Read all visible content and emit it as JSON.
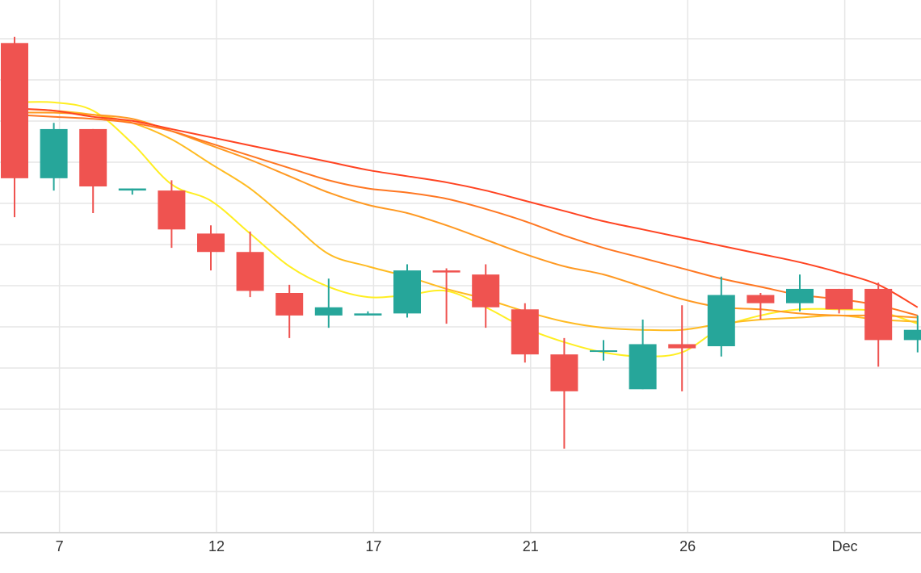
{
  "chart_data": {
    "type": "candlestick",
    "title": "",
    "xlabel": "",
    "ylabel": "",
    "grid": true,
    "legend": "none",
    "x_ticks": [
      {
        "label": "7",
        "index": 1
      },
      {
        "label": "12",
        "index": 5
      },
      {
        "label": "17",
        "index": 9
      },
      {
        "label": "21",
        "index": 13
      },
      {
        "label": "26",
        "index": 17
      },
      {
        "label": "Dec",
        "index": 21
      }
    ],
    "ylim": [
      0,
      13
    ],
    "colors": {
      "up": "#26a69a",
      "down": "#ef5350",
      "grid": "#e6e6e6",
      "tick_text": "#333333"
    },
    "candles": [
      {
        "open": 11.95,
        "high": 12.1,
        "low": 7.7,
        "close": 8.65
      },
      {
        "open": 8.65,
        "high": 10.0,
        "low": 8.35,
        "close": 9.85
      },
      {
        "open": 9.85,
        "high": 9.85,
        "low": 7.8,
        "close": 8.45
      },
      {
        "open": 8.35,
        "high": 8.4,
        "low": 8.25,
        "close": 8.4
      },
      {
        "open": 8.35,
        "high": 8.6,
        "low": 6.95,
        "close": 7.4
      },
      {
        "open": 7.3,
        "high": 7.5,
        "low": 6.4,
        "close": 6.85
      },
      {
        "open": 6.85,
        "high": 7.35,
        "low": 5.75,
        "close": 5.9
      },
      {
        "open": 5.85,
        "high": 6.05,
        "low": 4.75,
        "close": 5.3
      },
      {
        "open": 5.3,
        "high": 6.2,
        "low": 5.0,
        "close": 5.5
      },
      {
        "open": 5.3,
        "high": 5.4,
        "low": 5.3,
        "close": 5.35
      },
      {
        "open": 5.35,
        "high": 6.55,
        "low": 5.25,
        "close": 6.4
      },
      {
        "open": 6.4,
        "high": 6.45,
        "low": 5.1,
        "close": 6.35
      },
      {
        "open": 6.3,
        "high": 6.55,
        "low": 5.0,
        "close": 5.5
      },
      {
        "open": 5.45,
        "high": 5.6,
        "low": 4.15,
        "close": 4.35
      },
      {
        "open": 4.35,
        "high": 4.75,
        "low": 2.05,
        "close": 3.45
      },
      {
        "open": 4.45,
        "high": 4.7,
        "low": 4.2,
        "close": 4.45
      },
      {
        "open": 3.5,
        "high": 5.2,
        "low": 3.5,
        "close": 4.6
      },
      {
        "open": 4.6,
        "high": 5.55,
        "low": 3.45,
        "close": 4.5
      },
      {
        "open": 4.55,
        "high": 6.25,
        "low": 4.3,
        "close": 5.8
      },
      {
        "open": 5.8,
        "high": 5.85,
        "low": 5.2,
        "close": 5.6
      },
      {
        "open": 5.6,
        "high": 6.3,
        "low": 5.4,
        "close": 5.95
      },
      {
        "open": 5.95,
        "high": 5.95,
        "low": 5.35,
        "close": 5.45
      },
      {
        "open": 5.95,
        "high": 6.1,
        "low": 4.05,
        "close": 4.7
      },
      {
        "open": 4.7,
        "high": 5.3,
        "low": 4.4,
        "close": 4.95
      }
    ],
    "moving_averages": [
      {
        "color": "#ffee22",
        "values": [
          10.5,
          10.5,
          10.3,
          9.5,
          8.5,
          8.1,
          7.3,
          6.5,
          6.0,
          5.75,
          5.8,
          5.9,
          5.5,
          5.0,
          4.65,
          4.4,
          4.3,
          4.4,
          5.0,
          5.3,
          5.45,
          5.45,
          5.4,
          5.1
        ]
      },
      {
        "color": "#ffbb22",
        "values": [
          10.35,
          10.3,
          10.2,
          10.0,
          9.6,
          9.0,
          8.4,
          7.6,
          6.8,
          6.5,
          6.25,
          5.95,
          5.7,
          5.4,
          5.15,
          5.0,
          4.95,
          4.95,
          5.1,
          5.2,
          5.25,
          5.3,
          5.2,
          5.15
        ]
      },
      {
        "color": "#ff9922",
        "values": [
          10.25,
          10.25,
          10.2,
          10.1,
          9.8,
          9.45,
          9.1,
          8.7,
          8.3,
          8.0,
          7.8,
          7.5,
          7.15,
          6.8,
          6.5,
          6.3,
          6.0,
          5.7,
          5.5,
          5.45,
          5.35,
          5.3,
          5.3,
          5.25
        ]
      },
      {
        "color": "#ff7722",
        "values": [
          10.2,
          10.15,
          10.1,
          10.0,
          9.8,
          9.5,
          9.2,
          8.9,
          8.6,
          8.4,
          8.3,
          8.15,
          7.9,
          7.6,
          7.25,
          6.95,
          6.7,
          6.45,
          6.2,
          6.0,
          5.8,
          5.7,
          5.55,
          5.3
        ]
      },
      {
        "color": "#ff4422",
        "values": [
          10.35,
          10.3,
          10.15,
          10.05,
          9.85,
          9.65,
          9.45,
          9.25,
          9.05,
          8.85,
          8.7,
          8.55,
          8.35,
          8.1,
          7.85,
          7.6,
          7.4,
          7.2,
          7.0,
          6.8,
          6.6,
          6.35,
          6.05,
          5.5
        ]
      }
    ]
  }
}
